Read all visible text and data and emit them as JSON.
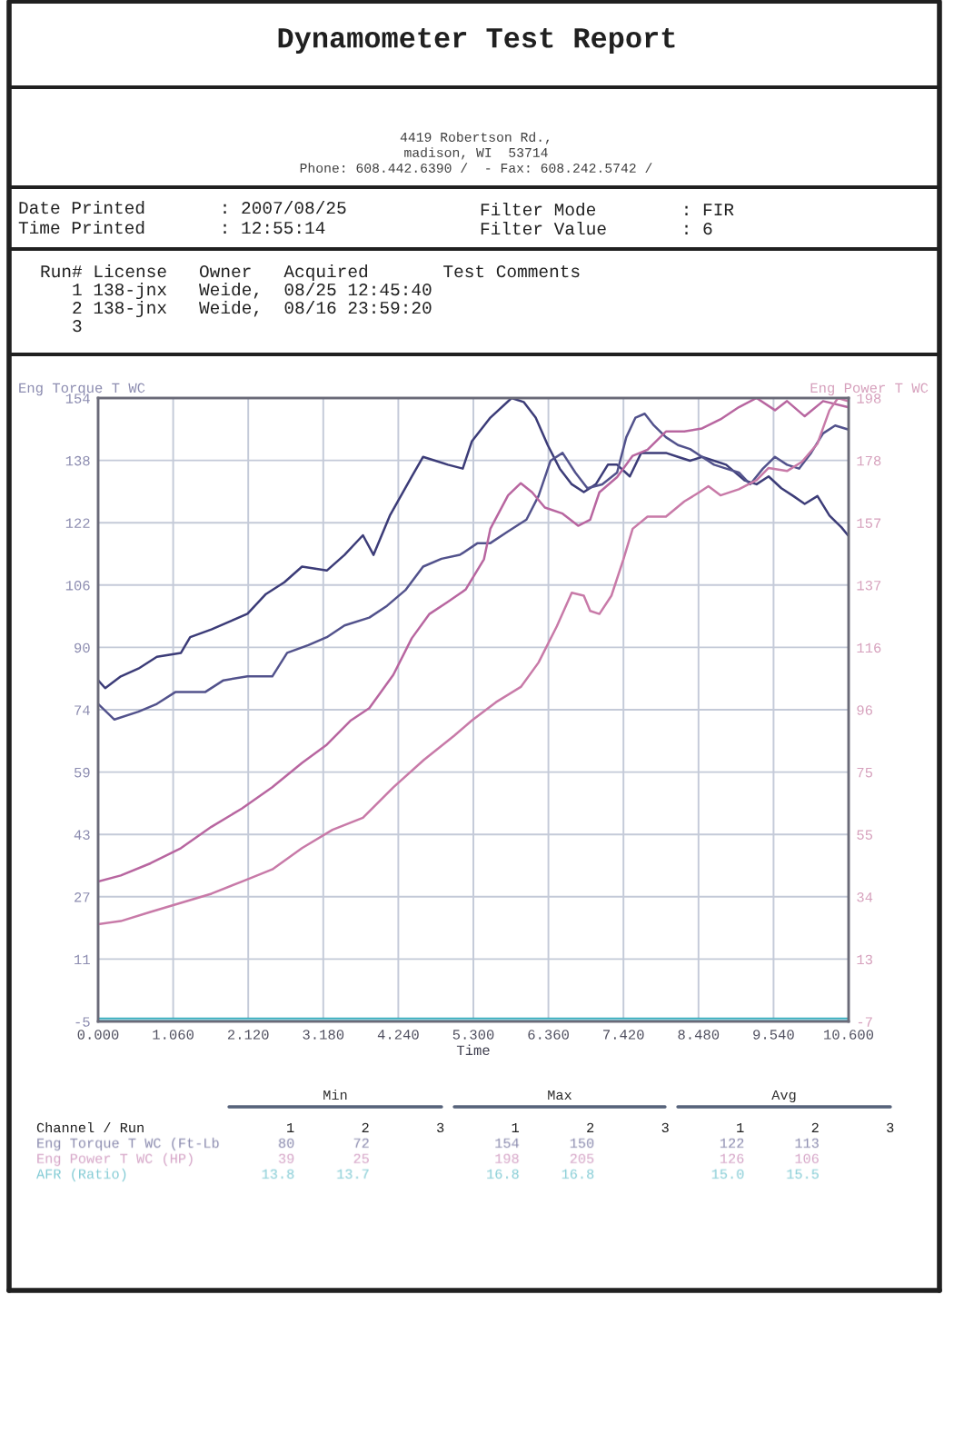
{
  "chart_data": {
    "type": "line",
    "title": "Dynamometer Test Report",
    "xlabel": "Time",
    "ylabel": "Eng Torque T WC",
    "y2label": "Eng Power T WC",
    "xlim": [
      0,
      10.6
    ],
    "xticks": [
      {
        "value": 0,
        "label": "0.000"
      },
      {
        "value": 1.06,
        "label": "1.060"
      },
      {
        "value": 2.12,
        "label": "2.120"
      },
      {
        "value": 3.18,
        "label": "3.180"
      },
      {
        "value": 4.24,
        "label": "4.240"
      },
      {
        "value": 5.3,
        "label": "5.300"
      },
      {
        "value": 6.36,
        "label": "6.360"
      },
      {
        "value": 7.42,
        "label": "7.420"
      },
      {
        "value": 8.48,
        "label": "8.480"
      },
      {
        "value": 9.54,
        "label": "9.540"
      },
      {
        "value": 10.6,
        "label": "10.600"
      }
    ],
    "ylim": [
      -5,
      154
    ],
    "yticks": [
      -5,
      {
        "value": 10.9,
        "label": "11"
      },
      {
        "value": 26.8,
        "label": "27"
      },
      {
        "value": 42.7,
        "label": "43"
      },
      {
        "value": 58.6,
        "label": "59"
      },
      {
        "value": 74.5,
        "label": "74"
      },
      {
        "value": 90.4,
        "label": "90"
      },
      {
        "value": 106.3,
        "label": "106"
      },
      {
        "value": 122.2,
        "label": "122"
      },
      {
        "value": 138.1,
        "label": "138"
      },
      154
    ],
    "y2lim": [
      -7,
      198
    ],
    "y2ticks": [
      -7,
      {
        "value": 13.5,
        "label": "13"
      },
      34,
      {
        "value": 54.5,
        "label": "55"
      },
      75,
      {
        "value": 95.5,
        "label": "96"
      },
      116,
      {
        "value": 136.5,
        "label": "137"
      },
      157,
      {
        "value": 177.5,
        "label": "178"
      },
      198
    ],
    "grid": true,
    "line_style": "solid",
    "series": [
      {
        "color": "#3c3c78",
        "x": [
          0,
          0.1,
          0.32,
          0.57,
          0.83,
          1.17,
          1.3,
          1.6,
          1.86,
          2.11,
          2.37,
          2.63,
          2.88,
          3.23,
          3.48,
          3.74,
          3.89,
          4.12,
          4.43,
          4.59,
          4.94,
          5.15,
          5.28,
          5.54,
          5.84,
          6.01,
          6.18,
          6.35,
          6.52,
          6.69,
          6.86,
          7.03,
          7.2,
          7.33,
          7.51,
          7.67,
          7.85,
          8.02,
          8.19,
          8.36,
          8.53,
          8.87,
          9.13,
          9.3,
          9.47,
          9.65,
          9.82,
          9.98,
          10.16,
          10.33,
          10.5,
          10.59
        ],
        "values": [
          82,
          80,
          83,
          85,
          88,
          89,
          93,
          95,
          97,
          99,
          104,
          107,
          111,
          110,
          114,
          119,
          114,
          124,
          134,
          139,
          137,
          136,
          143,
          149,
          154,
          153,
          149,
          142,
          136,
          132,
          130,
          132,
          137,
          137,
          134,
          140,
          140,
          140,
          139,
          138,
          139,
          137,
          133,
          132,
          134,
          131,
          129,
          127,
          129,
          124,
          121,
          119
        ]
      },
      {
        "color": "#52528c",
        "x": [
          0,
          0.23,
          0.57,
          0.83,
          1.09,
          1.51,
          1.77,
          2.11,
          2.46,
          2.67,
          2.97,
          3.23,
          3.48,
          3.83,
          4.08,
          4.34,
          4.59,
          4.85,
          5.11,
          5.36,
          5.54,
          5.79,
          6.05,
          6.22,
          6.39,
          6.56,
          6.74,
          6.91,
          7.12,
          7.33,
          7.46,
          7.59,
          7.72,
          7.85,
          8.02,
          8.19,
          8.36,
          8.53,
          8.7,
          8.87,
          9.05,
          9.21,
          9.39,
          9.56,
          9.73,
          9.9,
          10.07,
          10.24,
          10.41,
          10.59
        ],
        "values": [
          76,
          72,
          74,
          76,
          79,
          79,
          82,
          83,
          83,
          89,
          91,
          93,
          96,
          98,
          101,
          105,
          111,
          113,
          114,
          117,
          117,
          120,
          123,
          129,
          138,
          140,
          135,
          131,
          132,
          135,
          144,
          149,
          150,
          147,
          144,
          142,
          141,
          139,
          137,
          136,
          135,
          132,
          136,
          139,
          137,
          136,
          140,
          145,
          147,
          146
        ]
      },
      {
        "color": "#b866a0",
        "axis": "y2",
        "x": [
          0,
          0.32,
          0.74,
          1.17,
          1.6,
          2.03,
          2.46,
          2.88,
          3.23,
          3.57,
          3.83,
          4.17,
          4.43,
          4.68,
          4.94,
          5.19,
          5.45,
          5.54,
          5.79,
          5.97,
          6.13,
          6.31,
          6.56,
          6.78,
          6.95,
          7.08,
          7.33,
          7.55,
          7.76,
          8.02,
          8.28,
          8.53,
          8.79,
          9.05,
          9.3,
          9.56,
          9.73,
          9.98,
          10.24,
          10.59
        ],
        "values": [
          39,
          41,
          45,
          50,
          57,
          63,
          70,
          78,
          84,
          92,
          96,
          107,
          119,
          127,
          131,
          135,
          145,
          155,
          166,
          170,
          167,
          162,
          160,
          156,
          158,
          167,
          172,
          179,
          181,
          187,
          187,
          188,
          191,
          195,
          198,
          194,
          197,
          192,
          197,
          195
        ]
      },
      {
        "color": "#c87aa8",
        "axis": "y2",
        "x": [
          0,
          0.32,
          0.74,
          1.17,
          1.6,
          2.03,
          2.46,
          2.88,
          3.31,
          3.74,
          4.17,
          4.6,
          5.03,
          5.28,
          5.62,
          5.97,
          6.22,
          6.48,
          6.69,
          6.86,
          6.95,
          7.08,
          7.25,
          7.42,
          7.55,
          7.76,
          8.02,
          8.28,
          8.49,
          8.62,
          8.79,
          9.05,
          9.3,
          9.47,
          9.73,
          9.94,
          10.16,
          10.33,
          10.45,
          10.59
        ],
        "values": [
          25,
          26,
          29,
          32,
          35,
          39,
          43,
          50,
          56,
          60,
          70,
          79,
          87,
          92,
          98,
          103,
          111,
          123,
          134,
          133,
          128,
          127,
          133,
          145,
          155,
          159,
          159,
          164,
          167,
          169,
          166,
          168,
          171,
          175,
          174,
          177,
          183,
          194,
          198,
          197
        ]
      },
      {
        "color": "#2fa8b8",
        "x": [
          0,
          10.6
        ],
        "values": [
          -4.3,
          -4.3
        ]
      },
      {
        "color": "#88d4e0",
        "x": [
          0,
          10.6
        ],
        "values": [
          -4.6,
          -4.6
        ]
      }
    ],
    "annotations": [
      "4419 Robertson Rd.,",
      "madison, WI  53714",
      "Phone: 608.442.6390 /  - Fax: 608.242.5742 /",
      "Date Printed       : 2007/08/25",
      "Time Printed       : 12:55:14",
      "Filter Mode        : FIR",
      "Filter Value       : 6",
      "Run# License   Owner   Acquired       Test Comments",
      "   1 138-jnx   Weide,  08/25 12:45:40",
      "   2 138-jnx   Weide,  08/16 23:59:20",
      "   3",
      "Min",
      "Max",
      "Avg",
      "Channel / Run                 1        2        3        1        2        3        1        2        3",
      "Eng Torque T WC (Ft-Lb       80       72               154      150               122      113",
      "Eng Power T WC (HP)          39       25               198      205               126      106",
      "AFR (Ratio)                13.8     13.7              16.8     16.8              15.0     15.5"
    ]
  }
}
